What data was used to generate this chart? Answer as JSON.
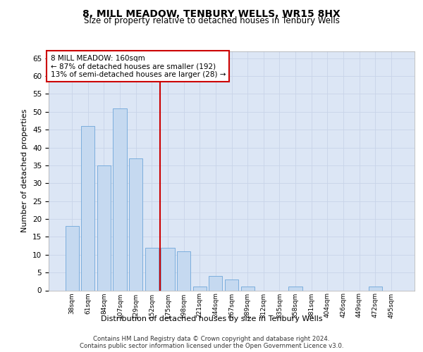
{
  "title": "8, MILL MEADOW, TENBURY WELLS, WR15 8HX",
  "subtitle": "Size of property relative to detached houses in Tenbury Wells",
  "xlabel": "Distribution of detached houses by size in Tenbury Wells",
  "ylabel": "Number of detached properties",
  "categories": [
    "38sqm",
    "61sqm",
    "84sqm",
    "107sqm",
    "129sqm",
    "152sqm",
    "175sqm",
    "198sqm",
    "221sqm",
    "244sqm",
    "267sqm",
    "289sqm",
    "312sqm",
    "335sqm",
    "358sqm",
    "381sqm",
    "404sqm",
    "426sqm",
    "449sqm",
    "472sqm",
    "495sqm"
  ],
  "values": [
    18,
    46,
    35,
    51,
    37,
    12,
    12,
    11,
    1,
    4,
    3,
    1,
    0,
    0,
    1,
    0,
    0,
    0,
    0,
    1,
    0
  ],
  "bar_color": "#c5d9f0",
  "bar_edge_color": "#5b9bd5",
  "grid_color": "#c8d4e8",
  "background_color": "#dce6f5",
  "red_line_x": 5.5,
  "annotation_text": "8 MILL MEADOW: 160sqm\n← 87% of detached houses are smaller (192)\n13% of semi-detached houses are larger (28) →",
  "annotation_box_color": "#ffffff",
  "annotation_border_color": "#cc0000",
  "ylim": [
    0,
    67
  ],
  "yticks": [
    0,
    5,
    10,
    15,
    20,
    25,
    30,
    35,
    40,
    45,
    50,
    55,
    60,
    65
  ],
  "footer_line1": "Contains HM Land Registry data © Crown copyright and database right 2024.",
  "footer_line2": "Contains public sector information licensed under the Open Government Licence v3.0."
}
